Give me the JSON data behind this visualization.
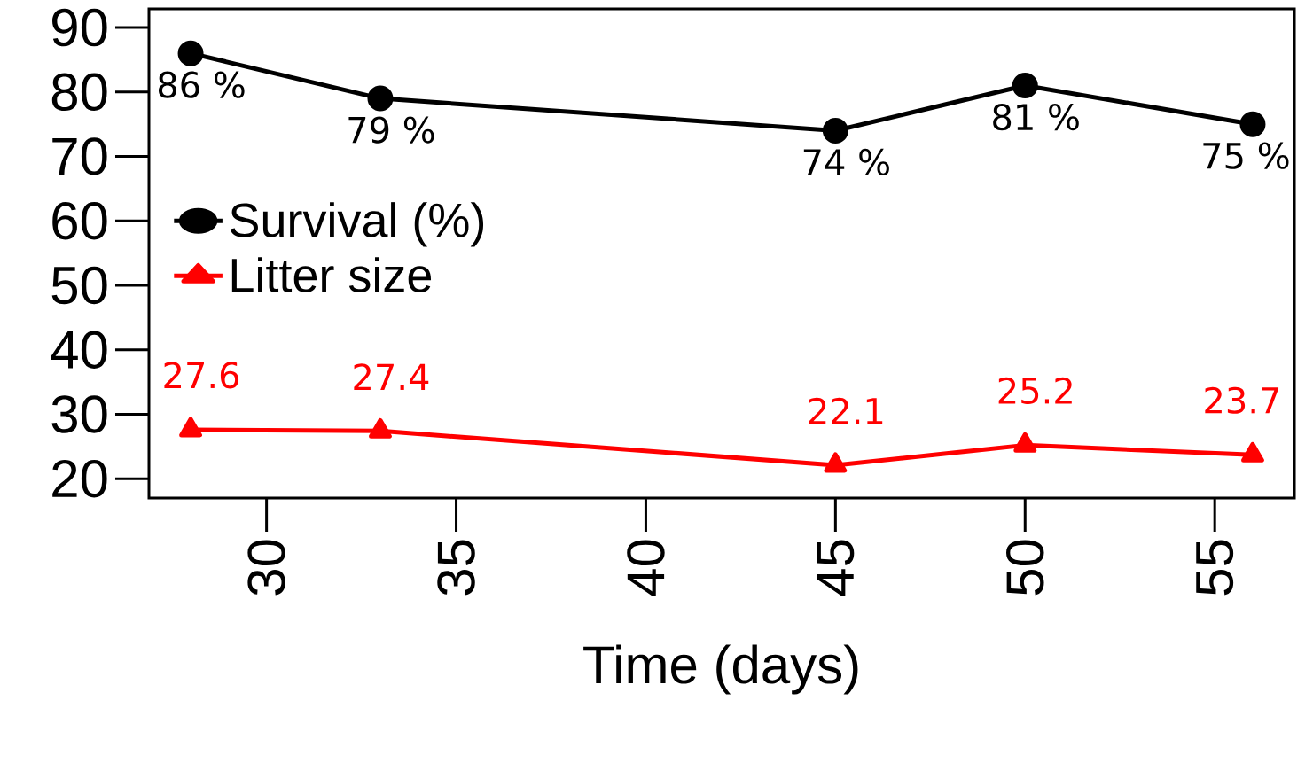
{
  "chart_data": {
    "type": "line",
    "xlabel": "Time (days)",
    "x": [
      28,
      33,
      45,
      50,
      56
    ],
    "series": [
      {
        "name": "Survival (%)",
        "color": "#000000",
        "marker": "circle",
        "values": [
          86,
          79,
          74,
          81,
          75
        ],
        "value_labels": [
          "86 %",
          "79 %",
          "74 %",
          "81 %",
          "75 %"
        ]
      },
      {
        "name": "Litter size",
        "color": "#ff0000",
        "marker": "triangle",
        "values": [
          27.6,
          27.4,
          22.1,
          25.2,
          23.7
        ],
        "value_labels": [
          "27.6",
          "27.4",
          "22.1",
          "25.2",
          "23.7"
        ]
      }
    ],
    "xlim": [
      26.9,
      57.1
    ],
    "ylim": [
      17,
      92.9
    ],
    "xticks": [
      30,
      35,
      40,
      45,
      50,
      55
    ],
    "yticks": [
      20,
      30,
      40,
      50,
      60,
      70,
      80,
      90
    ],
    "legend": "top left",
    "grid": false,
    "line_style": "solid"
  }
}
